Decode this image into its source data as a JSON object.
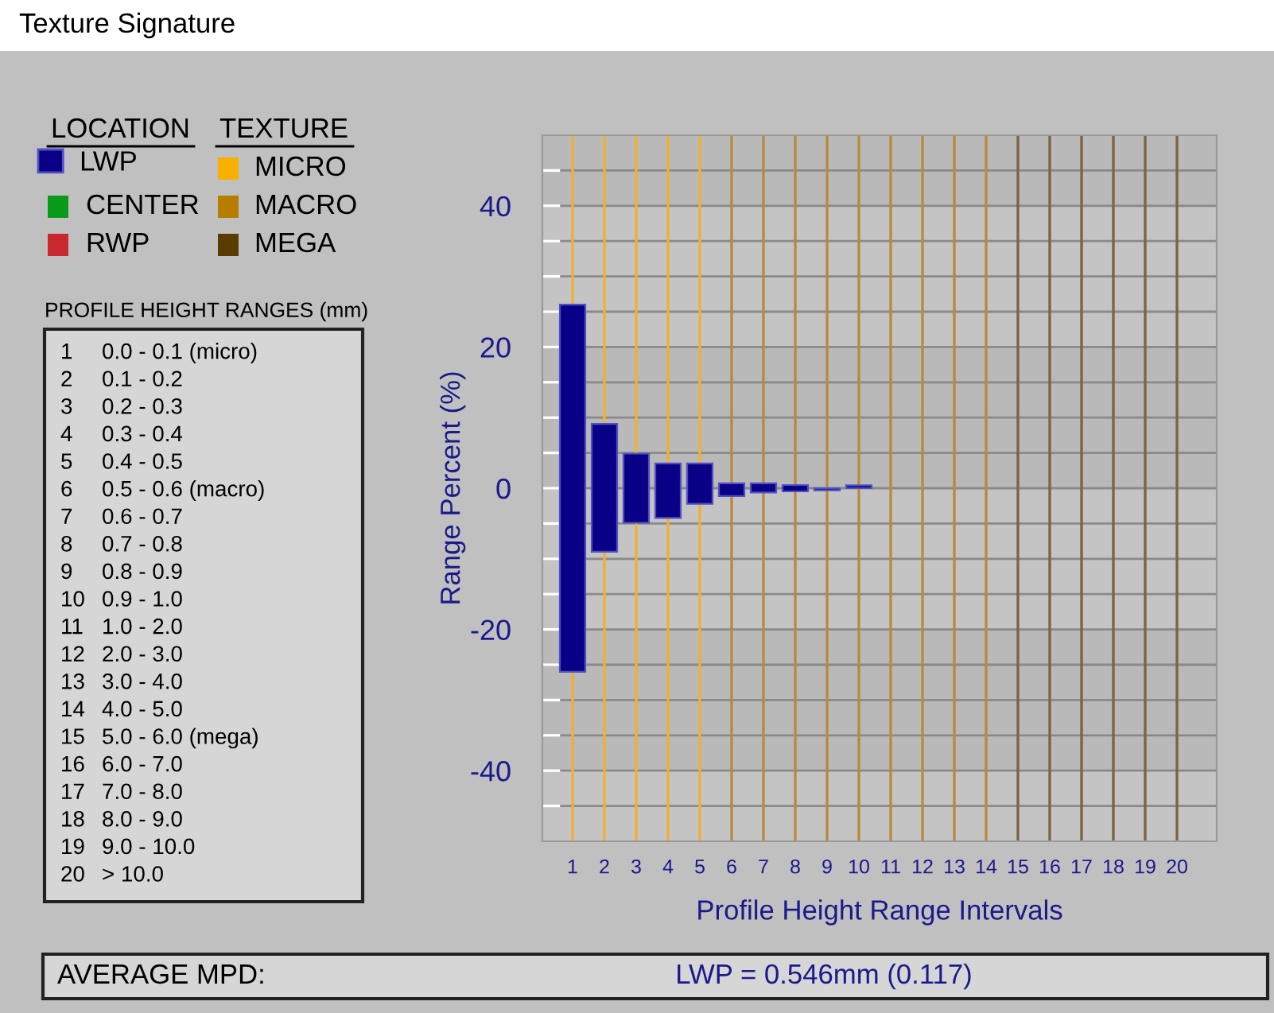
{
  "chart_data": {
    "type": "bar",
    "title": "Texture Signature",
    "xlabel": "Profile Height Range Intervals",
    "ylabel": "Range Percent (%)",
    "categories": [
      "1",
      "2",
      "3",
      "4",
      "5",
      "6",
      "7",
      "8",
      "9",
      "10",
      "11",
      "12",
      "13",
      "14",
      "15",
      "16",
      "17",
      "18",
      "19",
      "20"
    ],
    "series": [
      {
        "name": "LWP",
        "color": "#0a0088",
        "values": [
          52.0,
          18.1,
          9.8,
          7.7,
          5.7,
          1.8,
          1.3,
          0.9,
          0.3,
          0.4,
          null,
          null,
          null,
          null,
          null,
          null,
          null,
          null,
          null,
          null
        ],
        "base": [
          -26.0,
          -9.0,
          -4.9,
          -4.2,
          -2.2,
          -1.1,
          -0.6,
          -0.45,
          -0.3,
          0.0,
          null,
          null,
          null,
          null,
          null,
          null,
          null,
          null,
          null,
          null
        ]
      }
    ],
    "ylim": [
      -50,
      50
    ],
    "yticks": [
      {
        "value": -45,
        "label": null
      },
      -40,
      {
        "value": -35,
        "label": null
      },
      {
        "value": -30,
        "label": null
      },
      {
        "value": -25,
        "label": null
      },
      -20,
      {
        "value": -15,
        "label": null
      },
      {
        "value": -10,
        "label": null
      },
      {
        "value": -5,
        "label": null
      },
      0,
      {
        "value": 5,
        "label": null
      },
      {
        "value": 10,
        "label": null
      },
      {
        "value": 15,
        "label": null
      },
      20,
      {
        "value": 25,
        "label": null
      },
      {
        "value": 30,
        "label": null
      },
      {
        "value": 35,
        "label": null
      },
      40,
      {
        "value": 45,
        "label": null
      }
    ],
    "grid": "y",
    "legend": "left",
    "bands": [
      {
        "axis": "y",
        "from": 40,
        "to": 50,
        "color": "#b9b9b9"
      },
      {
        "axis": "y",
        "from": 0,
        "to": 20,
        "color": "#b9b9b9"
      },
      {
        "axis": "y",
        "from": -40,
        "to": -20,
        "color": "#b9b9b9"
      }
    ],
    "ref_lines": [
      {
        "axis": "x",
        "value": "1",
        "color": "#f0b030"
      },
      {
        "axis": "x",
        "value": "2",
        "color": "#f0b030"
      },
      {
        "axis": "x",
        "value": "3",
        "color": "#f0b030"
      },
      {
        "axis": "x",
        "value": "4",
        "color": "#f0b030"
      },
      {
        "axis": "x",
        "value": "5",
        "color": "#f0b030"
      },
      {
        "axis": "x",
        "value": "6",
        "color": "#b98a3c"
      },
      {
        "axis": "x",
        "value": "7",
        "color": "#b98a3c"
      },
      {
        "axis": "x",
        "value": "8",
        "color": "#b98a3c"
      },
      {
        "axis": "x",
        "value": "9",
        "color": "#b98a3c"
      },
      {
        "axis": "x",
        "value": "10",
        "color": "#b98a3c"
      },
      {
        "axis": "x",
        "value": "11",
        "color": "#b98a3c"
      },
      {
        "axis": "x",
        "value": "12",
        "color": "#b98a3c"
      },
      {
        "axis": "x",
        "value": "13",
        "color": "#b98a3c"
      },
      {
        "axis": "x",
        "value": "14",
        "color": "#b98a3c"
      },
      {
        "axis": "x",
        "value": "15",
        "color": "#7a6444"
      },
      {
        "axis": "x",
        "value": "16",
        "color": "#7a6444"
      },
      {
        "axis": "x",
        "value": "17",
        "color": "#7a6444"
      },
      {
        "axis": "x",
        "value": "18",
        "color": "#7a6444"
      },
      {
        "axis": "x",
        "value": "19",
        "color": "#7a6444"
      },
      {
        "axis": "x",
        "value": "20",
        "color": "#7a6444"
      }
    ],
    "annotations": [
      "LOCATION",
      "TEXTURE",
      "CENTER",
      "RWP",
      "MICRO",
      "MACRO",
      "MEGA",
      "PROFILE HEIGHT RANGES (mm)",
      "1 0.0 - 0.1 (micro)",
      "2 0.1 - 0.2",
      "3 0.2 - 0.3",
      "4 0.3 - 0.4",
      "5 0.4 - 0.5",
      "6 0.5 - 0.6 (macro)",
      "7 0.6 - 0.7",
      "8 0.7 - 0.8",
      "9 0.8 - 0.9",
      "10 0.9 - 1.0",
      "11 1.0 - 2.0",
      "12 2.0 - 3.0",
      "13 3.0 - 4.0",
      "14 4.0 - 5.0",
      "15 5.0 - 6.0 (mega)",
      "16 6.0 - 7.0",
      "17 7.0 - 8.0",
      "18 8.0 - 9.0",
      "19 9.0 - 10.0",
      "20 > 10.0",
      "AVERAGE MPD:",
      "LWP = 0.546mm (0.117)"
    ]
  }
}
